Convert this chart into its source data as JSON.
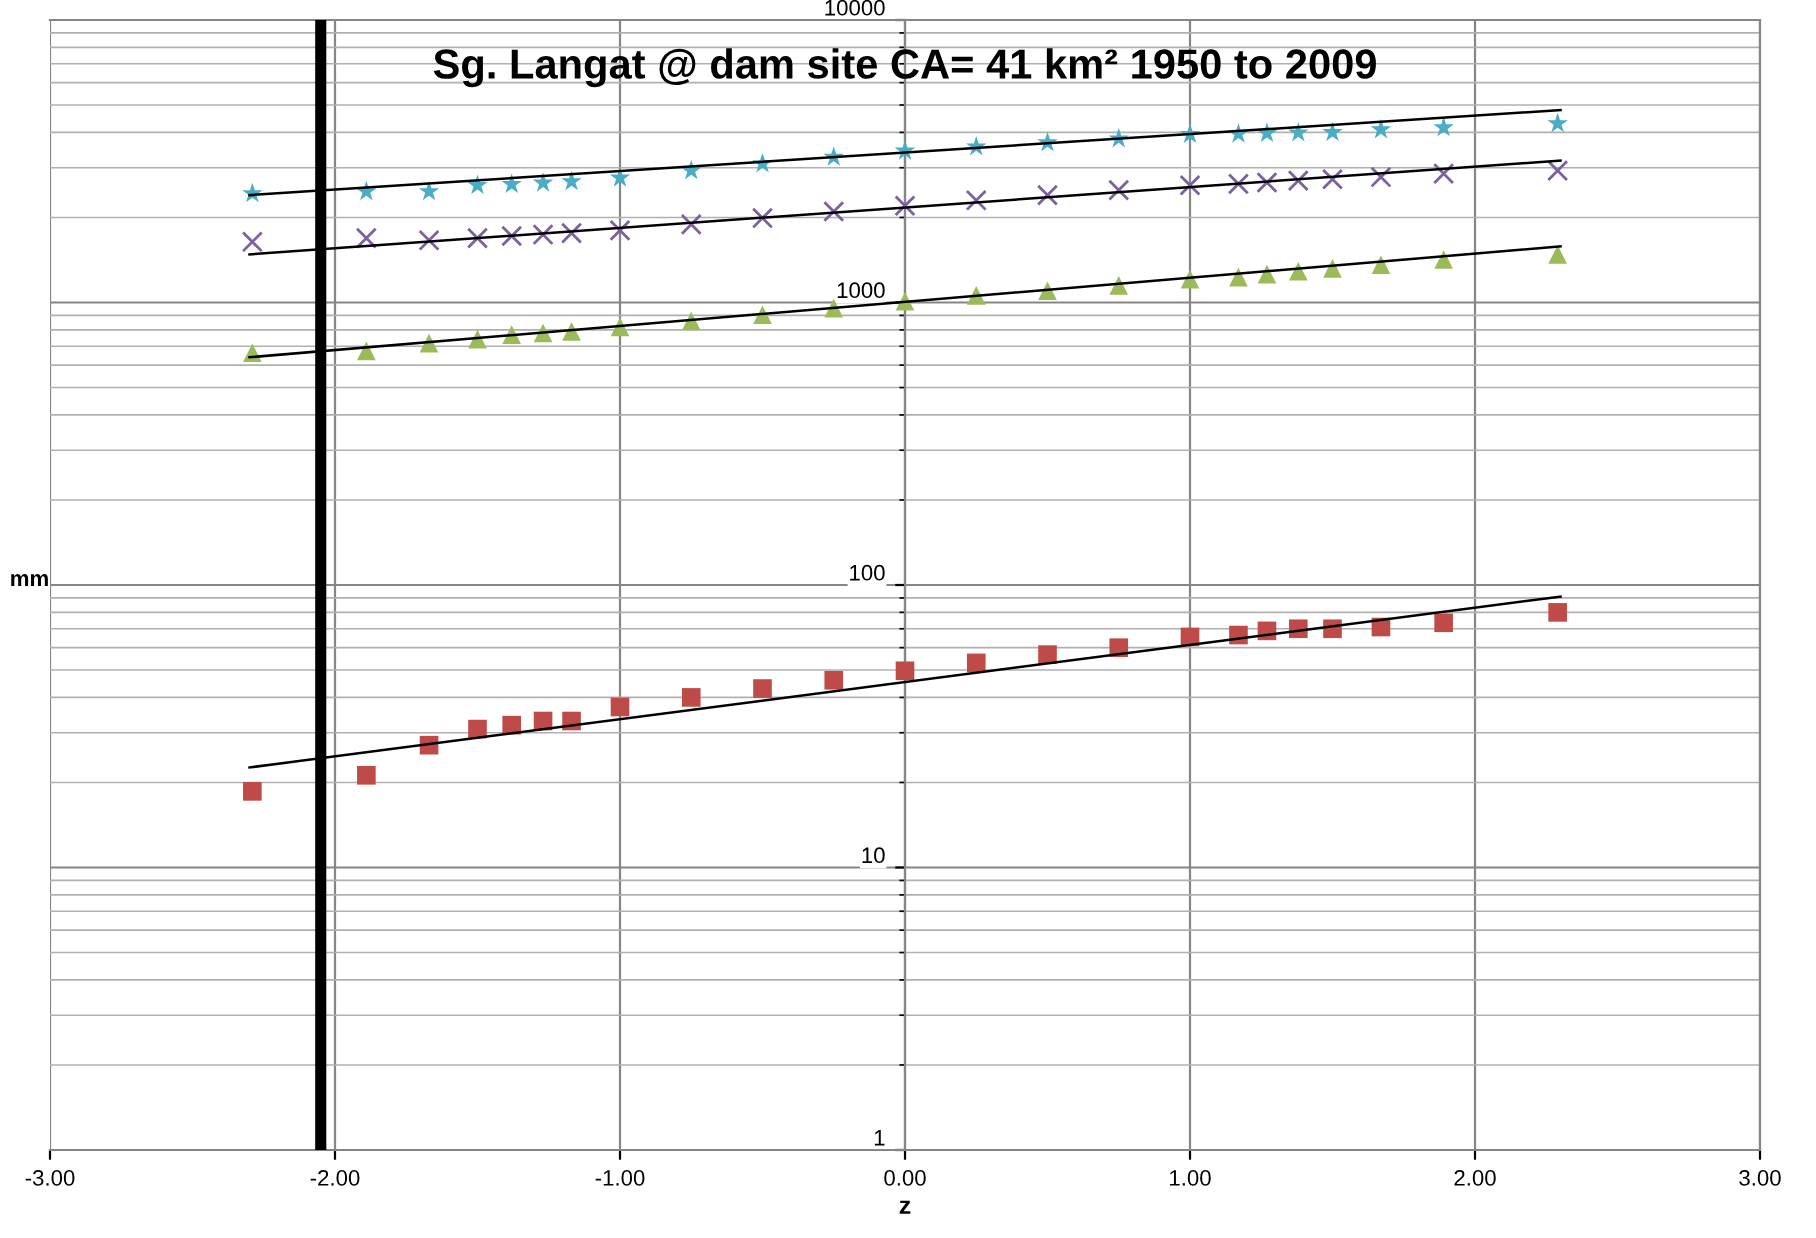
{
  "chart_data": {
    "type": "line",
    "title": "Sg. Langat @ dam site CA= 41 km² 1950 to 2009",
    "xlabel": "z",
    "ylabel": "mm",
    "log": "y",
    "grid": true,
    "xlim": [
      -3,
      3
    ],
    "xticks": [
      {
        "value": -3,
        "label": "-3.00"
      },
      {
        "value": -2,
        "label": "-2.00"
      },
      {
        "value": -1,
        "label": "-1.00"
      },
      {
        "value": 0,
        "label": "0.00"
      },
      {
        "value": 1,
        "label": "1.00"
      },
      {
        "value": 2,
        "label": "2.00"
      },
      {
        "value": 3,
        "label": "3.00"
      }
    ],
    "ylim": [
      1,
      10000
    ],
    "yticks": [
      1,
      10,
      100,
      1000,
      10000
    ],
    "ref_lines": [
      {
        "axis": "x",
        "value": -2.05,
        "color": "#000000"
      }
    ],
    "series": [
      {
        "type": "scatter",
        "marker": "square",
        "color": "#be4b48",
        "x": [
          -2.29,
          -1.89,
          -1.67,
          -1.5,
          -1.38,
          -1.27,
          -1.17,
          -1.0,
          -0.75,
          -0.5,
          -0.25,
          0,
          0.25,
          0.5,
          0.75,
          1.0,
          1.17,
          1.27,
          1.38,
          1.5,
          1.67,
          1.89,
          2.29
        ],
        "values": [
          18.6,
          21.2,
          27.1,
          30.9,
          31.9,
          33,
          33,
          37,
          40,
          43,
          46,
          49.7,
          53,
          56.7,
          60,
          65.5,
          66.5,
          68.8,
          70,
          70,
          71,
          73.5,
          80
        ]
      },
      {
        "type": "scatter",
        "marker": "triangle",
        "color": "#9bbb59",
        "x": [
          -2.29,
          -1.89,
          -1.67,
          -1.5,
          -1.38,
          -1.27,
          -1.17,
          -1.0,
          -0.75,
          -0.5,
          -0.25,
          0,
          0.25,
          0.5,
          0.75,
          1.0,
          1.17,
          1.27,
          1.38,
          1.5,
          1.67,
          1.89,
          2.29
        ],
        "values": [
          664,
          674,
          718,
          742,
          770,
          780,
          790,
          820,
          860,
          905,
          955,
          1010,
          1060,
          1100,
          1150,
          1210,
          1230,
          1260,
          1290,
          1320,
          1360,
          1420,
          1480
        ]
      },
      {
        "type": "scatter",
        "marker": "cross",
        "color": "#7d60a0",
        "x": [
          -2.29,
          -1.89,
          -1.67,
          -1.5,
          -1.38,
          -1.27,
          -1.17,
          -1.0,
          -0.75,
          -0.5,
          -0.25,
          0,
          0.25,
          0.5,
          0.75,
          1.0,
          1.17,
          1.27,
          1.38,
          1.5,
          1.67,
          1.89,
          2.29
        ],
        "values": [
          1640,
          1690,
          1660,
          1690,
          1720,
          1740,
          1760,
          1800,
          1890,
          1990,
          2100,
          2200,
          2300,
          2400,
          2500,
          2600,
          2630,
          2660,
          2700,
          2730,
          2780,
          2860,
          2930
        ]
      },
      {
        "type": "scatter",
        "marker": "star",
        "color": "#4bacc6",
        "x": [
          -2.29,
          -1.89,
          -1.67,
          -1.5,
          -1.38,
          -1.27,
          -1.17,
          -1.0,
          -0.75,
          -0.5,
          -0.25,
          0,
          0.25,
          0.5,
          0.75,
          1.0,
          1.17,
          1.27,
          1.38,
          1.5,
          1.67,
          1.89,
          2.29
        ],
        "values": [
          2430,
          2470,
          2470,
          2600,
          2620,
          2650,
          2680,
          2760,
          2930,
          3100,
          3270,
          3440,
          3560,
          3680,
          3800,
          3940,
          3950,
          3970,
          3990,
          4000,
          4090,
          4160,
          4300
        ]
      },
      {
        "color": "#000000",
        "x": [
          -2.3,
          2.3
        ],
        "values": [
          22.6,
          91
        ]
      },
      {
        "color": "#000000",
        "x": [
          -2.3,
          2.3
        ],
        "values": [
          640,
          1580
        ]
      },
      {
        "color": "#000000",
        "x": [
          -2.3,
          2.3
        ],
        "values": [
          1480,
          3180
        ]
      },
      {
        "color": "#000000",
        "x": [
          -2.3,
          2.3
        ],
        "values": [
          2400,
          4800
        ]
      }
    ]
  }
}
